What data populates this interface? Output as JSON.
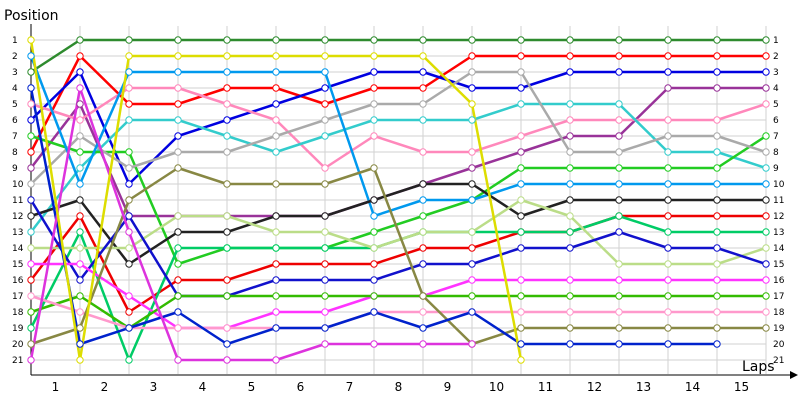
{
  "chart_data": {
    "type": "line",
    "ylabel": "Position",
    "xlabel": "Laps",
    "x_ticks": [
      "1",
      "2",
      "3",
      "4",
      "5",
      "6",
      "7",
      "8",
      "9",
      "10",
      "11",
      "12",
      "13",
      "14",
      "15"
    ],
    "y_ticks": [
      1,
      2,
      3,
      4,
      5,
      6,
      7,
      8,
      9,
      10,
      11,
      12,
      13,
      14,
      15,
      16,
      17,
      18,
      19,
      20,
      21
    ],
    "ylim": [
      1,
      21
    ],
    "y_inverted": true,
    "grid": true,
    "marker_fill": "#ffffff",
    "series": [
      {
        "color": "#2e8b2e",
        "values": [
          3,
          1,
          1,
          1,
          1,
          1,
          1,
          1,
          1,
          1,
          1,
          1,
          1,
          1,
          1,
          1
        ]
      },
      {
        "color": "#ff0000",
        "values": [
          8,
          2,
          5,
          5,
          4,
          4,
          5,
          4,
          4,
          2,
          2,
          2,
          2,
          2,
          2,
          2
        ]
      },
      {
        "color": "#0000e0",
        "values": [
          6,
          3,
          10,
          7,
          6,
          5,
          4,
          3,
          3,
          4,
          4,
          3,
          3,
          3,
          3,
          3
        ]
      },
      {
        "color": "#993399",
        "values": [
          9,
          5,
          12,
          12,
          12,
          12,
          12,
          11,
          10,
          9,
          8,
          7,
          7,
          4,
          4,
          4
        ]
      },
      {
        "color": "#ff88bb",
        "values": [
          5,
          6,
          4,
          4,
          5,
          6,
          9,
          7,
          8,
          8,
          7,
          6,
          6,
          6,
          6,
          5
        ]
      },
      {
        "color": "#33cccc",
        "values": [
          13,
          9,
          6,
          6,
          7,
          8,
          7,
          6,
          6,
          6,
          5,
          5,
          5,
          8,
          8,
          9
        ]
      },
      {
        "color": "#22cc22",
        "values": [
          7,
          8,
          8,
          15,
          14,
          14,
          14,
          13,
          12,
          11,
          9,
          9,
          9,
          9,
          9,
          7
        ]
      },
      {
        "color": "#aaaaaa",
        "values": [
          10,
          7,
          9,
          8,
          8,
          7,
          6,
          5,
          5,
          3,
          3,
          8,
          8,
          7,
          7,
          8
        ]
      },
      {
        "color": "#0099ee",
        "values": [
          2,
          10,
          3,
          3,
          3,
          3,
          3,
          12,
          11,
          11,
          10,
          10,
          10,
          10,
          10,
          10
        ]
      },
      {
        "color": "#222222",
        "values": [
          12,
          11,
          15,
          13,
          13,
          12,
          12,
          11,
          10,
          10,
          12,
          11,
          11,
          11,
          11,
          11
        ]
      },
      {
        "color": "#ee0000",
        "values": [
          16,
          12,
          18,
          16,
          16,
          15,
          15,
          15,
          14,
          14,
          13,
          13,
          12,
          12,
          12,
          12
        ]
      },
      {
        "color": "#00cc66",
        "values": [
          19,
          13,
          21,
          14,
          14,
          14,
          14,
          14,
          13,
          13,
          13,
          13,
          12,
          13,
          13,
          13
        ]
      },
      {
        "color": "#bbdd88",
        "values": [
          14,
          14,
          14,
          12,
          12,
          13,
          13,
          14,
          13,
          13,
          11,
          12,
          15,
          15,
          15,
          14
        ]
      },
      {
        "color": "#1111cc",
        "values": [
          11,
          16,
          12,
          17,
          17,
          16,
          16,
          16,
          15,
          15,
          14,
          14,
          13,
          14,
          14,
          15
        ]
      },
      {
        "color": "#ff33ff",
        "values": [
          15,
          15,
          17,
          19,
          19,
          18,
          18,
          17,
          17,
          16,
          16,
          16,
          16,
          16,
          16,
          16
        ]
      },
      {
        "color": "#33bb00",
        "values": [
          18,
          17,
          19,
          17,
          17,
          17,
          17,
          17,
          17,
          17,
          17,
          17,
          17,
          17,
          17,
          17
        ]
      },
      {
        "color": "#ff99cc",
        "values": [
          17,
          18,
          19,
          19,
          19,
          19,
          19,
          18,
          18,
          18,
          18,
          18,
          18,
          18,
          18,
          18
        ]
      },
      {
        "color": "#888844",
        "values": [
          20,
          19,
          11,
          9,
          10,
          10,
          10,
          9,
          17,
          20,
          19,
          19,
          19,
          19,
          19,
          19
        ]
      },
      {
        "color": "#0022cc",
        "values": [
          4,
          20,
          19,
          18,
          20,
          19,
          19,
          18,
          19,
          18,
          20,
          20,
          20,
          20,
          20
        ]
      },
      {
        "color": "#dd33dd",
        "values": [
          21,
          4,
          13,
          21,
          21,
          21,
          20,
          20,
          20,
          20
        ]
      },
      {
        "color": "#dddd00",
        "values": [
          1,
          21,
          2,
          2,
          2,
          2,
          2,
          2,
          2,
          5,
          21
        ]
      }
    ]
  }
}
